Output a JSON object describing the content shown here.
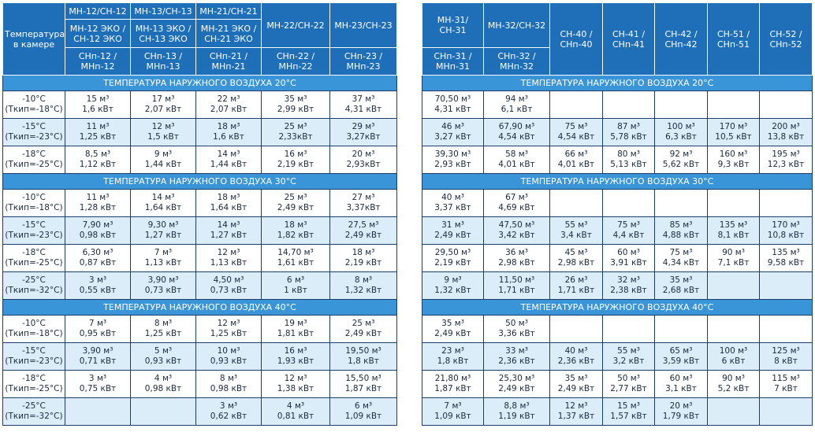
{
  "left": {
    "corner": "Температура в камере",
    "headers": [
      [
        "МН-12/СН-12",
        "МН-12 ЭКО / СН-12 ЭКО",
        "СНп-12 / МНп-12"
      ],
      [
        "МН-13/СН-13",
        "МН-13 ЭКО / СН-13 ЭКО",
        "СНп-13 / МНп-13"
      ],
      [
        "МН-21/СН-21",
        "МН-21 ЭКО / СН-21 ЭКО",
        "СНп-21 / МНп-21"
      ],
      [
        "МН-22/СН-22",
        "СНп-22 / МНп-22"
      ],
      [
        "МН-23/СН-23",
        "СНп-23 / МНп-23"
      ]
    ],
    "sections": [
      {
        "title": "ТЕМПЕРАТУРА НАРУЖНОГО ВОЗДУХА 20°С",
        "rows": [
          {
            "temp": "-10°С",
            "tkip": "(Ткип=-18°С)",
            "cells": [
              [
                "15 м³",
                "1,6 кВт"
              ],
              [
                "17 м³",
                "2,07 кВт"
              ],
              [
                "22 м³",
                "2,07 кВт"
              ],
              [
                "35 м³",
                "2,99 кВт"
              ],
              [
                "37 м³",
                "4,31 кВт"
              ]
            ]
          },
          {
            "temp": "-15°С",
            "tkip": "(Ткип=-23°С)",
            "cells": [
              [
                "11 м³",
                "1,25 кВт"
              ],
              [
                "12 м³",
                "1,5 кВт"
              ],
              [
                "18 м³",
                "1,6 кВт"
              ],
              [
                "25 м³",
                "2,33кВт"
              ],
              [
                "29 м³",
                "3,27кВт"
              ]
            ]
          },
          {
            "temp": "-18°С",
            "tkip": "(Ткип=-25°С)",
            "cells": [
              [
                "8,5 м³",
                "1,12 кВт"
              ],
              [
                "9 м³",
                "1,44 кВт"
              ],
              [
                "14 м³",
                "1,44 кВт"
              ],
              [
                "16 м³",
                "2,19 кВт"
              ],
              [
                "20 м³",
                "2,93кВт"
              ]
            ]
          }
        ]
      },
      {
        "title": "ТЕМПЕРАТУРА НАРУЖНОГО ВОЗДУХА 30°С",
        "rows": [
          {
            "temp": "-10°С",
            "tkip": "(Ткип=-18°С)",
            "cells": [
              [
                "11 м³",
                "1,28 кВт"
              ],
              [
                "14 м³",
                "1,64 кВт"
              ],
              [
                "18 м³",
                "1,64 кВт"
              ],
              [
                "25 м³",
                "2,49 кВт"
              ],
              [
                "27 м³",
                "3,37кВт"
              ]
            ]
          },
          {
            "temp": "-15°С",
            "tkip": "(Ткип=-23°С)",
            "cells": [
              [
                "7,90 м³",
                "0,98 кВт"
              ],
              [
                "9,30 м³",
                "1,27 кВт"
              ],
              [
                "14 м³",
                "1,27 кВт"
              ],
              [
                "18 м³",
                "1,82 кВт"
              ],
              [
                "27,5 м³",
                "2,49 кВт"
              ]
            ]
          },
          {
            "temp": "-18°С",
            "tkip": "(Ткип=-25°С)",
            "cells": [
              [
                "6,30 м³",
                "0,87 кВт"
              ],
              [
                "7 м³",
                "1,13 кВт"
              ],
              [
                "12 м³",
                "1,13 кВт"
              ],
              [
                "14,70 м³",
                "1,61 кВт"
              ],
              [
                "18 м³",
                "2,19 кВт"
              ]
            ]
          },
          {
            "temp": "-25°С",
            "tkip": "(Ткип=-32°С)",
            "cells": [
              [
                "3 м³",
                "0,55 кВт"
              ],
              [
                "3,90 м³",
                "0,73 кВт"
              ],
              [
                "4,50 м³",
                "0,73 кВт"
              ],
              [
                "6 м³",
                "1 кВт"
              ],
              [
                "8 м³",
                "1,32 кВт"
              ]
            ]
          }
        ]
      },
      {
        "title": "ТЕМПЕРАТУРА НАРУЖНОГО ВОЗДУХА 40°С",
        "rows": [
          {
            "temp": "-10°С",
            "tkip": "(Ткип=-18°С)",
            "cells": [
              [
                "7 м³",
                "0,95 кВт"
              ],
              [
                "8 м³",
                "1,25 кВт"
              ],
              [
                "12 м³",
                "1,25 кВт"
              ],
              [
                "19 м³",
                "1,81 кВт"
              ],
              [
                "25 м³",
                "2,49 кВт"
              ]
            ]
          },
          {
            "temp": "-15°С",
            "tkip": "(Ткип=-23°С)",
            "cells": [
              [
                "3,90 м³",
                "0,71 кВт"
              ],
              [
                "5 м³",
                "0,93 кВт"
              ],
              [
                "10 м³",
                "0,93 кВт"
              ],
              [
                "16 м³",
                "1,93 кВт"
              ],
              [
                "19,50 м³",
                "1,8 кВт"
              ]
            ]
          },
          {
            "temp": "-18°С",
            "tkip": "(Ткип=-25°С)",
            "cells": [
              [
                "3 м³",
                "0,75 кВт"
              ],
              [
                "4 м³",
                "0,98 кВт"
              ],
              [
                "8 м³",
                "0,98 кВт"
              ],
              [
                "12 м³",
                "1,38 кВт"
              ],
              [
                "15,50 м³",
                "1,87 кВт"
              ]
            ]
          },
          {
            "temp": "-25°С",
            "tkip": "(Ткип=-32°С)",
            "cells": [
              null,
              null,
              [
                "3 м³",
                "0,62 кВт"
              ],
              [
                "4 м³",
                "0,81 кВт"
              ],
              [
                "6 м³",
                "1,09 кВт"
              ]
            ]
          }
        ]
      }
    ]
  },
  "right": {
    "headers": [
      [
        "МН-31/СН-31",
        "СНп-31 / МНп-31"
      ],
      [
        "МН-32/СН-32",
        "СНп-32 / МНп-32"
      ],
      [
        "СН-40 / СНп-40"
      ],
      [
        "СН-41 / СНп-41"
      ],
      [
        "СН-42 / СНп-42"
      ],
      [
        "СН-51 / СНп-51"
      ],
      [
        "СН-52 / СНп-52"
      ]
    ],
    "sections": [
      {
        "title": "ТЕМПЕРАТУРА НАРУЖНОГО ВОЗДУХА 20°С",
        "rows": [
          {
            "cells": [
              [
                "70,50 м³",
                "4,31 кВт"
              ],
              [
                "94 м³",
                "6,1 кВт"
              ],
              null,
              null,
              null,
              null,
              null
            ]
          },
          {
            "cells": [
              [
                "46 м³",
                "3,27 кВт"
              ],
              [
                "67,90 м³",
                "4,54 кВт"
              ],
              [
                "75 м³",
                "4,54 кВт"
              ],
              [
                "87 м³",
                "5,78 кВт"
              ],
              [
                "100 м³",
                "6,3 кВт"
              ],
              [
                "170 м³",
                "10,5 кВт"
              ],
              [
                "200 м³",
                "13,8 кВт"
              ]
            ]
          },
          {
            "cells": [
              [
                "39,30 м³",
                "2,93 кВт"
              ],
              [
                "58 м³",
                "4,01 кВт"
              ],
              [
                "66 м³",
                "4,01 кВт"
              ],
              [
                "80 м³",
                "5,13 кВт"
              ],
              [
                "92 м³",
                "5,62 кВт"
              ],
              [
                "160 м³",
                "9,3 кВт"
              ],
              [
                "195 м³",
                "12,3 кВт"
              ]
            ]
          }
        ]
      },
      {
        "title": "ТЕМПЕРАТУРА НАРУЖНОГО ВОЗДУХА 30°С",
        "rows": [
          {
            "cells": [
              [
                "40 м³",
                "3,37 кВт"
              ],
              [
                "67 м³",
                "4,69 кВт"
              ],
              null,
              null,
              null,
              null,
              null
            ]
          },
          {
            "cells": [
              [
                "31 м³",
                "2,49 кВт"
              ],
              [
                "47,50 м³",
                "3,42 кВт"
              ],
              [
                "55 м³",
                "3,4 кВт"
              ],
              [
                "75 м³",
                "4,4 кВт"
              ],
              [
                "85 м³",
                "4,88 кВт"
              ],
              [
                "135 м³",
                "8,1 кВт"
              ],
              [
                "170 м³",
                "10,8 кВт"
              ]
            ]
          },
          {
            "cells": [
              [
                "29,50 м³",
                "2,19 кВт"
              ],
              [
                "36 м³",
                "2,98 кВт"
              ],
              [
                "45 м³",
                "2,98 кВт"
              ],
              [
                "60 м³",
                "3,91 кВт"
              ],
              [
                "75 м³",
                "4,34 кВт"
              ],
              [
                "90 м³",
                "7,1 кВт"
              ],
              [
                "135 м³",
                "9,58 кВт"
              ]
            ]
          },
          {
            "cells": [
              [
                "9 м³",
                "1,32 кВт"
              ],
              [
                "11,50 м³",
                "1,71 кВт"
              ],
              [
                "26 м³",
                "1,71 кВт"
              ],
              [
                "32 м³",
                "2,38 кВт"
              ],
              [
                "35 м³",
                "2,68 кВт"
              ],
              null,
              null
            ]
          }
        ]
      },
      {
        "title": "ТЕМПЕРАТУРА НАРУЖНОГО ВОЗДУХА 40°С",
        "rows": [
          {
            "cells": [
              [
                "35 м³",
                "2,49 кВт"
              ],
              [
                "50 м³",
                "3,36 кВт"
              ],
              null,
              null,
              null,
              null,
              null
            ]
          },
          {
            "cells": [
              [
                "23 м³",
                "1,8 кВт"
              ],
              [
                "33 м³",
                "2,36 кВт"
              ],
              [
                "40 м³",
                "2,36 кВт"
              ],
              [
                "55 м³",
                "3,2 кВт"
              ],
              [
                "65 м³",
                "3,59 кВт"
              ],
              [
                "100 м³",
                "6 кВт"
              ],
              [
                "125 м³",
                "8 кВт"
              ]
            ]
          },
          {
            "cells": [
              [
                "21,80 м³",
                "1,87 кВт"
              ],
              [
                "25,30 м³",
                "2,49 кВт"
              ],
              [
                "35 м³",
                "2,49 кВт"
              ],
              [
                "50 м³",
                "2,77 кВт"
              ],
              [
                "60 м³",
                "3,1 кВт"
              ],
              [
                "90 м³",
                "5,2 кВт"
              ],
              [
                "115 м³",
                "7 кВт"
              ]
            ]
          },
          {
            "cells": [
              [
                "7 м³",
                "1,09 кВт"
              ],
              [
                "8,8 м³",
                "1,19 кВт"
              ],
              [
                "12 м³",
                "1,37 кВт"
              ],
              [
                "15 м³",
                "1,57 кВт"
              ],
              [
                "20 м³",
                "1,79 кВт"
              ],
              null,
              null
            ]
          }
        ]
      }
    ]
  }
}
